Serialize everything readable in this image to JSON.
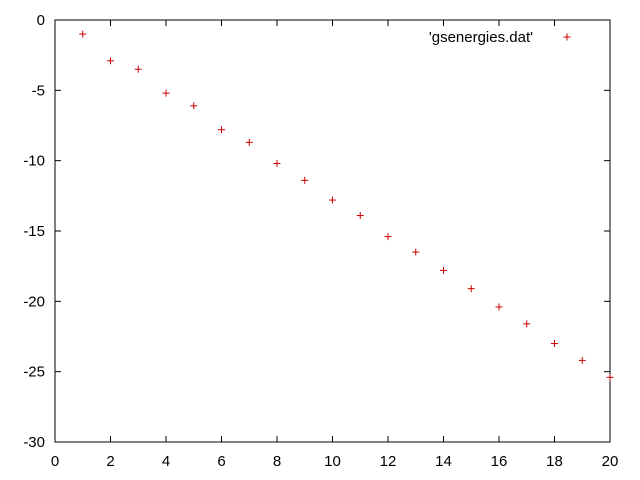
{
  "chart_data": {
    "type": "scatter",
    "title": "",
    "xlabel": "",
    "ylabel": "",
    "xlim": [
      0,
      20
    ],
    "ylim": [
      -30,
      0
    ],
    "xticks": [
      0,
      2,
      4,
      6,
      8,
      10,
      12,
      14,
      16,
      18,
      20
    ],
    "yticks": [
      0,
      -5,
      -10,
      -15,
      -20,
      -25,
      -30
    ],
    "grid": false,
    "legend_position": "top-right",
    "series": [
      {
        "name": "'gsenergies.dat'",
        "marker": "plus",
        "color": "#cc0000",
        "x": [
          1,
          2,
          3,
          4,
          5,
          6,
          7,
          8,
          9,
          10,
          11,
          12,
          13,
          14,
          15,
          16,
          17,
          18,
          19,
          20
        ],
        "y": [
          -1.0,
          -2.9,
          -3.5,
          -5.2,
          -6.1,
          -7.8,
          -8.7,
          -10.2,
          -11.4,
          -12.8,
          -13.9,
          -15.4,
          -16.5,
          -17.8,
          -19.1,
          -20.4,
          -21.6,
          -23.0,
          -24.2,
          -25.4
        ]
      }
    ]
  }
}
